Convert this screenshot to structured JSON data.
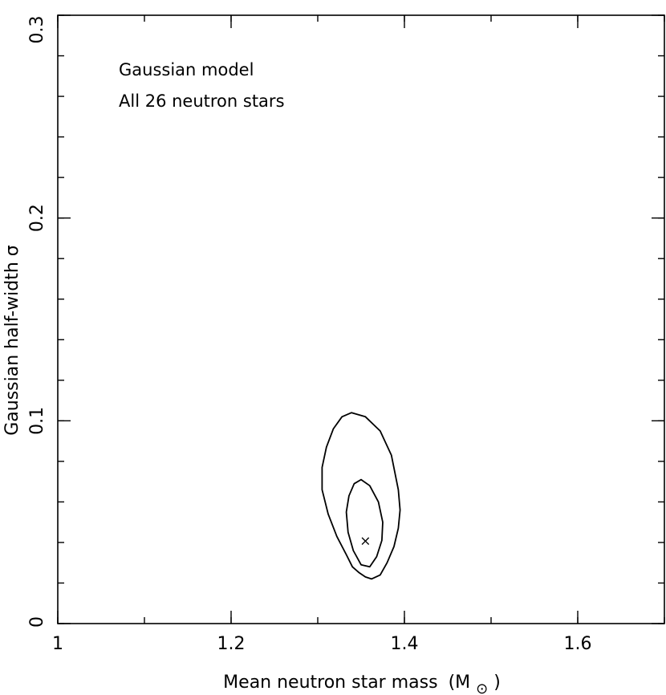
{
  "chart_data": {
    "type": "contour",
    "xlabel": "Mean neutron star mass",
    "xlabel_unit_prefix": "(M",
    "xlabel_unit_suffix": ")",
    "xlabel_unit_symbol": "⊙",
    "ylabel": "Gaussian half-width σ",
    "xlim": [
      1.0,
      1.7
    ],
    "ylim": [
      0.0,
      0.3
    ],
    "x_ticks": [
      {
        "value": 1.0,
        "label": "1"
      },
      {
        "value": 1.2,
        "label": "1.2"
      },
      {
        "value": 1.4,
        "label": "1.4"
      },
      {
        "value": 1.6,
        "label": "1.6"
      }
    ],
    "y_ticks": [
      {
        "value": 0.0,
        "label": "0"
      },
      {
        "value": 0.1,
        "label": "0.1"
      },
      {
        "value": 0.2,
        "label": "0.2"
      },
      {
        "value": 0.3,
        "label": "0.3"
      }
    ],
    "x_minor_step": 0.1,
    "y_minor_step": 0.02,
    "annotations": [
      "Gaussian model",
      "All 26 neutron stars"
    ],
    "best_fit": {
      "x": 1.355,
      "y": 0.041,
      "marker": "×"
    },
    "contours": [
      {
        "level": "outer",
        "points": [
          [
            1.339,
            0.104
          ],
          [
            1.355,
            0.102
          ],
          [
            1.372,
            0.095
          ],
          [
            1.385,
            0.083
          ],
          [
            1.393,
            0.066
          ],
          [
            1.395,
            0.056
          ],
          [
            1.393,
            0.047
          ],
          [
            1.388,
            0.038
          ],
          [
            1.38,
            0.03
          ],
          [
            1.372,
            0.024
          ],
          [
            1.362,
            0.022
          ],
          [
            1.355,
            0.023
          ],
          [
            1.348,
            0.025
          ],
          [
            1.34,
            0.028
          ],
          [
            1.333,
            0.034
          ],
          [
            1.322,
            0.043
          ],
          [
            1.312,
            0.054
          ],
          [
            1.305,
            0.066
          ],
          [
            1.305,
            0.077
          ],
          [
            1.31,
            0.087
          ],
          [
            1.318,
            0.096
          ],
          [
            1.328,
            0.102
          ],
          [
            1.339,
            0.104
          ]
        ]
      },
      {
        "level": "inner",
        "points": [
          [
            1.35,
            0.071
          ],
          [
            1.36,
            0.068
          ],
          [
            1.37,
            0.06
          ],
          [
            1.375,
            0.05
          ],
          [
            1.374,
            0.041
          ],
          [
            1.368,
            0.033
          ],
          [
            1.36,
            0.028
          ],
          [
            1.35,
            0.029
          ],
          [
            1.341,
            0.036
          ],
          [
            1.335,
            0.045
          ],
          [
            1.333,
            0.055
          ],
          [
            1.336,
            0.063
          ],
          [
            1.342,
            0.069
          ],
          [
            1.35,
            0.071
          ]
        ]
      }
    ]
  }
}
